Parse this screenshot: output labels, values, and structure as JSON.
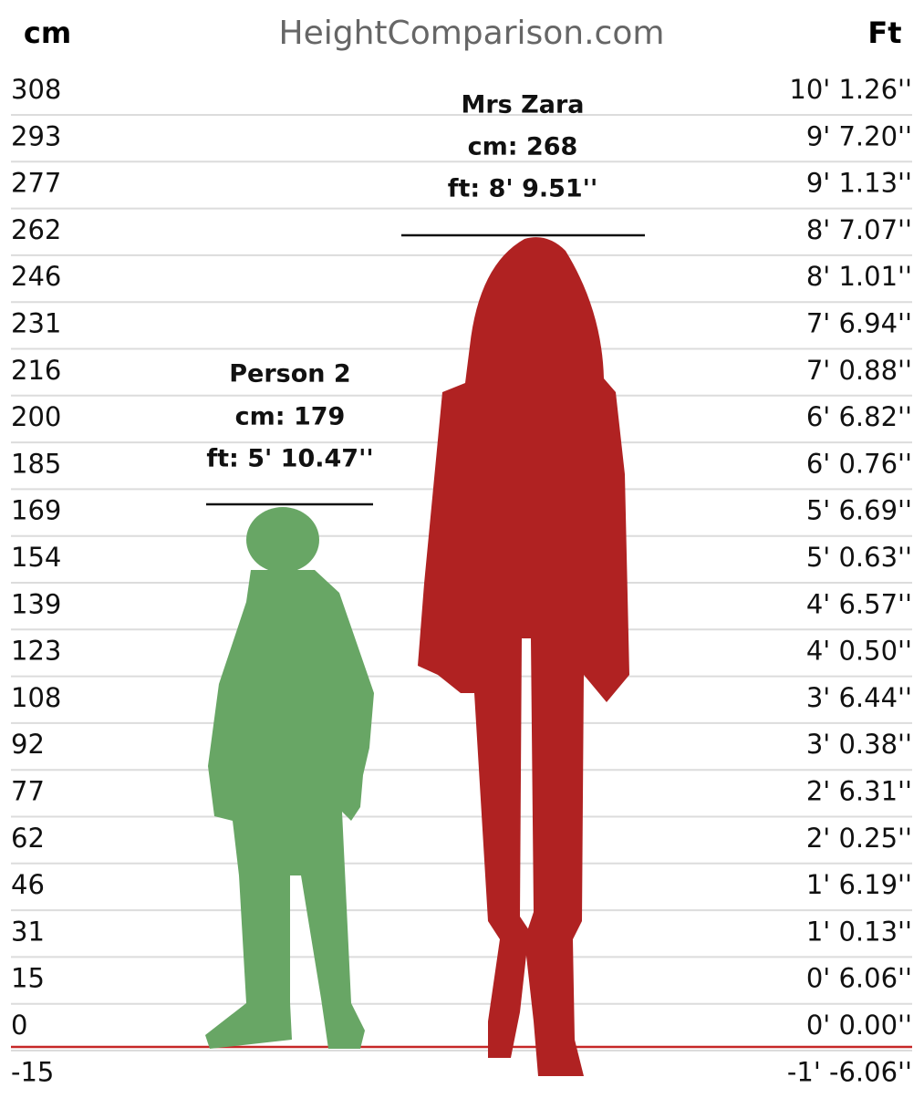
{
  "header": {
    "left_unit": "cm",
    "site": "HeightComparison.com",
    "right_unit": "Ft"
  },
  "scale": {
    "cm_labels": [
      "308",
      "293",
      "277",
      "262",
      "246",
      "231",
      "216",
      "200",
      "185",
      "169",
      "154",
      "139",
      "123",
      "108",
      "92",
      "77",
      "62",
      "46",
      "31",
      "15",
      "0",
      "-15"
    ],
    "ft_labels": [
      "10' 1.26''",
      "9' 7.20''",
      "9' 1.13''",
      "8' 7.07''",
      "8' 1.01''",
      "7' 6.94''",
      "7' 0.88''",
      "6' 6.82''",
      "6' 0.76''",
      "5' 6.69''",
      "5' 0.63''",
      "4' 6.57''",
      "4' 0.50''",
      "3' 6.44''",
      "3' 0.38''",
      "2' 6.31''",
      "2' 0.25''",
      "1' 6.19''",
      "1' 0.13''",
      "0' 6.06''",
      "0' 0.00''",
      "-1' -6.06''"
    ]
  },
  "people": [
    {
      "name": "Person 2",
      "cm": "cm: 179",
      "ft": "ft: 5' 10.47''"
    },
    {
      "name": "Mrs Zara",
      "cm": "cm: 268",
      "ft": "ft: 8' 9.51''"
    }
  ]
}
